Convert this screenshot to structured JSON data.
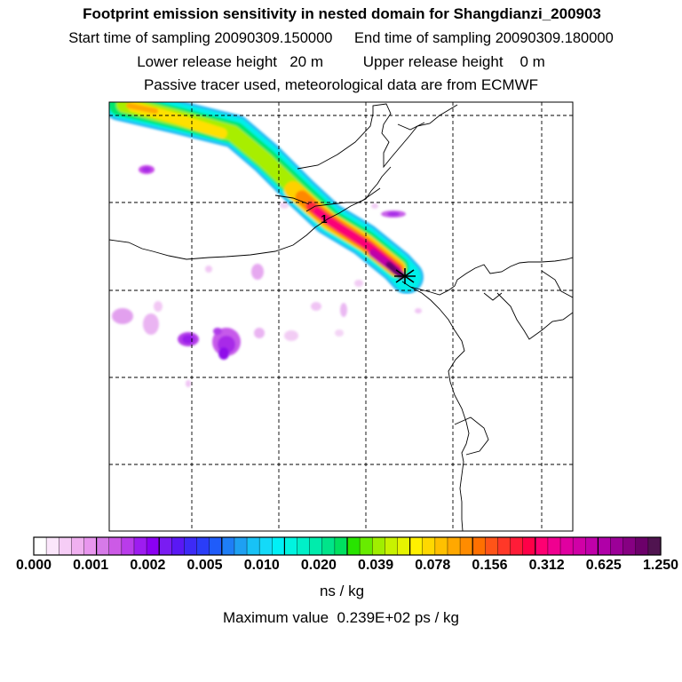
{
  "header": {
    "title": "Footprint emission sensitivity in nested domain for Shangdianzi_200903",
    "start_label": "Start time of sampling",
    "start_value": "20090309.150000",
    "end_label": "End time of sampling",
    "end_value": "20090309.180000",
    "lower_label": "Lower release height",
    "lower_value": "20 m",
    "upper_label": "Upper release height",
    "upper_value": "0 m",
    "tracer_note": "Passive tracer used, meteorological data are from ECMWF"
  },
  "map": {
    "release_marker": "1",
    "receptor_icon": "star-cross-icon"
  },
  "colorbar": {
    "tick_labels": [
      "0.000",
      "0.001",
      "0.002",
      "0.005",
      "0.010",
      "0.020",
      "0.039",
      "0.078",
      "0.156",
      "0.312",
      "0.625",
      "1.250"
    ],
    "colors": [
      "#ffffff",
      "#fbe6fb",
      "#f6cdf6",
      "#f0b0f0",
      "#e896ee",
      "#d67ae8",
      "#cc5ae6",
      "#b93cea",
      "#9d1cf0",
      "#8b00f3",
      "#7a1cf2",
      "#5a18f4",
      "#3d2af6",
      "#2a3df8",
      "#1f5cfa",
      "#1e7ef6",
      "#1ea0f2",
      "#18c2f6",
      "#14daf8",
      "#00f0f6",
      "#00f4e0",
      "#00f0c8",
      "#00ecac",
      "#00e48a",
      "#00e060",
      "#28e400",
      "#68ec00",
      "#a0ee00",
      "#c8f200",
      "#e6f400",
      "#fff000",
      "#ffd800",
      "#ffc000",
      "#ffa800",
      "#ff8c00",
      "#ff7000",
      "#ff5418",
      "#ff3828",
      "#ff1c38",
      "#ff0048",
      "#fe0072",
      "#f00090",
      "#e000a0",
      "#d000a6",
      "#c000aa",
      "#b000a8",
      "#9c0098",
      "#860082",
      "#6c006a",
      "#501450"
    ]
  },
  "footer": {
    "unit": "ns / kg",
    "max_label": "Maximum value",
    "max_value": "0.239E+02 ps / kg"
  }
}
